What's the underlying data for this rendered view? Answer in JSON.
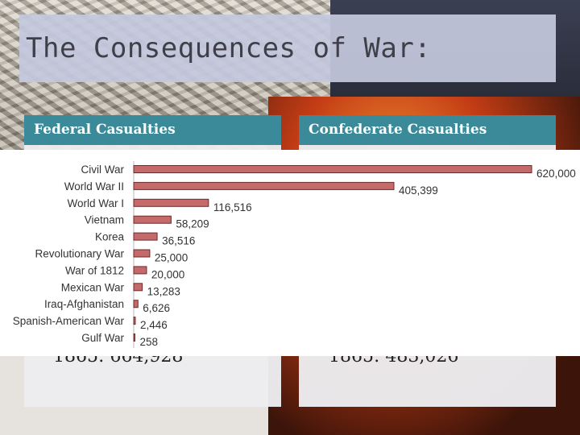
{
  "slide": {
    "title": "The Consequences of War:",
    "federal_header": "Federal Casualties",
    "confederate_header": "Confederate Casualties",
    "federal_partial_text": "1865: 664,928",
    "confederate_partial_text": "1865: 483,026"
  },
  "colors": {
    "header_bg": "#3b8a99",
    "bar_fill": "#c46a6a",
    "bar_stroke": "#6e2b2b"
  },
  "chart_data": {
    "type": "bar",
    "orientation": "horizontal",
    "title": "",
    "xlabel": "",
    "ylabel": "",
    "categories": [
      "Civil War",
      "World War II",
      "World War I",
      "Vietnam",
      "Korea",
      "Revolutionary War",
      "War of 1812",
      "Mexican War",
      "Iraq-Afghanistan",
      "Spanish-American War",
      "Gulf War"
    ],
    "values": [
      620000,
      405399,
      116516,
      58209,
      36516,
      25000,
      20000,
      13283,
      6626,
      2446,
      258
    ],
    "value_labels": [
      "620,000",
      "405,399",
      "116,516",
      "58,209",
      "36,516",
      "25,000",
      "20,000",
      "13,283",
      "6,626",
      "2,446",
      "258"
    ],
    "xlim": [
      0,
      620000
    ],
    "grid": false,
    "legend": "none"
  }
}
